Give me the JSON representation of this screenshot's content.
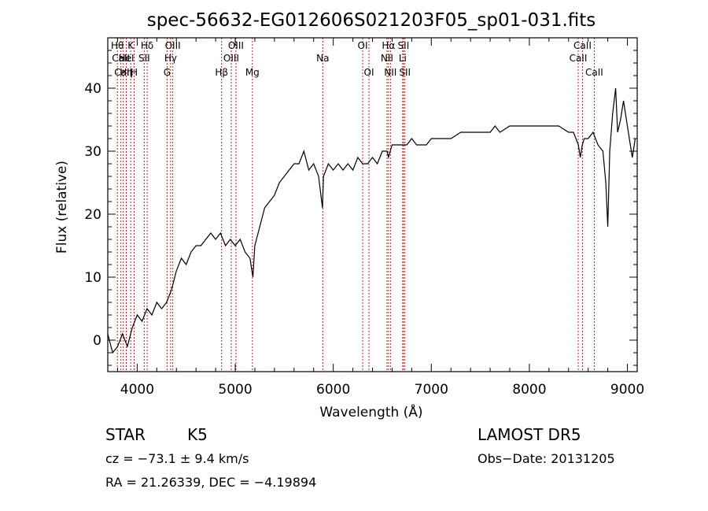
{
  "chart_data": {
    "type": "line",
    "title": "spec-56632-EG012606S021203F05_sp01-031.fits",
    "xlabel": "Wavelength (Å)",
    "ylabel": "Flux (relative)",
    "xlim": [
      3700,
      9100
    ],
    "ylim": [
      -5,
      48
    ],
    "xticks": [
      4000,
      5000,
      6000,
      7000,
      8000,
      9000
    ],
    "yticks": [
      0,
      10,
      20,
      30,
      40
    ],
    "grid": false,
    "series": [
      {
        "x": [
          3700,
          3750,
          3800,
          3850,
          3900,
          3950,
          4000,
          4050,
          4100,
          4150,
          4200,
          4250,
          4300,
          4350,
          4400,
          4450,
          4500,
          4550,
          4600,
          4650,
          4700,
          4750,
          4800,
          4850,
          4900,
          4950,
          5000,
          5050,
          5100,
          5150,
          5180,
          5200,
          5250,
          5300,
          5350,
          5400,
          5450,
          5500,
          5550,
          5600,
          5650,
          5700,
          5750,
          5800,
          5850,
          5890,
          5900,
          5950,
          6000,
          6050,
          6100,
          6150,
          6200,
          6250,
          6300,
          6350,
          6400,
          6450,
          6500,
          6550,
          6563,
          6600,
          6650,
          6700,
          6750,
          6800,
          6850,
          6900,
          6950,
          7000,
          7100,
          7200,
          7300,
          7400,
          7500,
          7600,
          7650,
          7700,
          7800,
          7900,
          8000,
          8100,
          8200,
          8300,
          8400,
          8450,
          8500,
          8520,
          8540,
          8560,
          8600,
          8650,
          8700,
          8750,
          8780,
          8800,
          8820,
          8850,
          8880,
          8900,
          8930,
          8960,
          9000,
          9050,
          9080
        ],
        "y": [
          1,
          -2,
          -1,
          1,
          -1,
          2,
          4,
          3,
          5,
          4,
          6,
          5,
          6,
          8,
          11,
          13,
          12,
          14,
          15,
          15,
          16,
          17,
          16,
          17,
          15,
          16,
          15,
          16,
          14,
          13,
          10,
          15,
          18,
          21,
          22,
          23,
          25,
          26,
          27,
          28,
          28,
          30,
          27,
          28,
          26,
          21,
          26,
          28,
          27,
          28,
          27,
          28,
          27,
          29,
          28,
          28,
          29,
          28,
          30,
          30,
          29,
          31,
          31,
          31,
          31,
          32,
          31,
          31,
          31,
          32,
          32,
          32,
          33,
          33,
          33,
          33,
          34,
          33,
          34,
          34,
          34,
          34,
          34,
          34,
          33,
          33,
          31,
          29,
          31,
          32,
          32,
          33,
          31,
          30,
          25,
          18,
          30,
          36,
          40,
          33,
          35,
          38,
          34,
          29,
          32
        ],
        "color": "#000000"
      }
    ],
    "spectral_lines": [
      {
        "label": "Hθ",
        "x": 3798,
        "row": 1
      },
      {
        "label": "CaII",
        "x": 3834,
        "row": 2
      },
      {
        "label": "CaII",
        "x": 3858,
        "row": 3
      },
      {
        "label": "Hη",
        "x": 3889,
        "row": 3
      },
      {
        "label": "K",
        "x": 3934,
        "row": 1
      },
      {
        "label": "HeI",
        "x": 3889,
        "row": 2
      },
      {
        "label": "H",
        "x": 3969,
        "row": 3
      },
      {
        "label": "SII",
        "x": 4072,
        "row": 2
      },
      {
        "label": "Hδ",
        "x": 4102,
        "row": 1
      },
      {
        "label": "G",
        "x": 4305,
        "row": 3
      },
      {
        "label": "OIII",
        "x": 4363,
        "row": 1
      },
      {
        "label": "Hγ",
        "x": 4341,
        "row": 2
      },
      {
        "label": "Hβ",
        "x": 4861,
        "row": 3
      },
      {
        "label": "OIII",
        "x": 4959,
        "row": 2
      },
      {
        "label": "OIII",
        "x": 5007,
        "row": 1
      },
      {
        "label": "Mg",
        "x": 5175,
        "row": 3
      },
      {
        "label": "Na",
        "x": 5893,
        "row": 2
      },
      {
        "label": "OI",
        "x": 6300,
        "row": 1
      },
      {
        "label": "OI",
        "x": 6364,
        "row": 3
      },
      {
        "label": "NII",
        "x": 6548,
        "row": 2
      },
      {
        "label": "Hα",
        "x": 6563,
        "row": 1
      },
      {
        "label": "NII",
        "x": 6583,
        "row": 3
      },
      {
        "label": "Li",
        "x": 6708,
        "row": 2
      },
      {
        "label": "SII",
        "x": 6716,
        "row": 1
      },
      {
        "label": "SII",
        "x": 6731,
        "row": 3
      },
      {
        "label": "CaII",
        "x": 8498,
        "row": 2
      },
      {
        "label": "CaII",
        "x": 8542,
        "row": 1
      },
      {
        "label": "CaII",
        "x": 8662,
        "row": 3
      }
    ]
  },
  "info": {
    "class_label": "STAR",
    "subclass_label": "K5",
    "survey": "LAMOST  DR5",
    "cz": "cz = −73.1 ± 9.4 km/s",
    "obs_date": "Obs−Date: 20131205",
    "coords": "RA =  21.26339, DEC =  −4.19894"
  },
  "colors": {
    "line_marker": "#b22222",
    "spectrum": "#000000",
    "axis": "#000000"
  }
}
